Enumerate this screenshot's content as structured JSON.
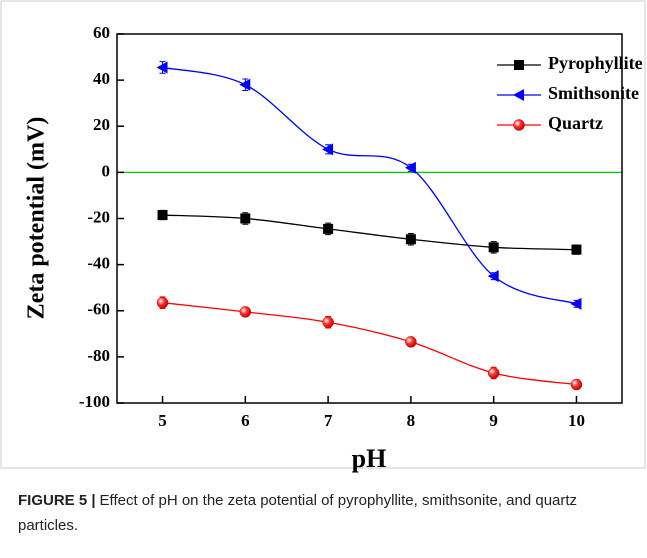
{
  "chart_data": {
    "type": "line",
    "x_label": "pH",
    "y_label": "Zeta potential (mV)",
    "x": [
      5,
      6,
      7,
      8,
      9,
      10
    ],
    "series": [
      {
        "name": "Pyrophyllite",
        "color": "#000000",
        "marker": "square",
        "values": [
          -18.5,
          -20,
          -24.5,
          -29,
          -32.5,
          -33.5
        ],
        "errors": [
          2,
          2.5,
          2.5,
          2.5,
          2.5,
          2
        ]
      },
      {
        "name": "Smithsonite",
        "color": "#0000ff",
        "marker": "triangle-left",
        "values": [
          45.5,
          38,
          10,
          2,
          -45,
          -57
        ],
        "errors": [
          2.5,
          2.5,
          2,
          1.5,
          1.5,
          1.5
        ]
      },
      {
        "name": "Quartz",
        "color": "#ff0000",
        "marker": "circle",
        "values": [
          -56.5,
          -60.5,
          -65,
          -73.5,
          -87,
          -92
        ],
        "errors": [
          2.5,
          2,
          2.5,
          2,
          2.5,
          2
        ]
      }
    ],
    "xlim": [
      4.45,
      10.55
    ],
    "ylim": [
      -100,
      60
    ],
    "xticks": [
      5,
      6,
      7,
      8,
      9,
      10
    ],
    "yticks": [
      -100,
      -80,
      -60,
      -40,
      -20,
      0,
      20,
      40,
      60
    ],
    "reference_line": {
      "value": 0,
      "color": "#00cc00"
    },
    "legend": "upper right"
  },
  "caption": {
    "label": "FIGURE 5 |",
    "text": "Effect of pH on the zeta potential of pyrophyllite, smithsonite, and quartz particles."
  }
}
